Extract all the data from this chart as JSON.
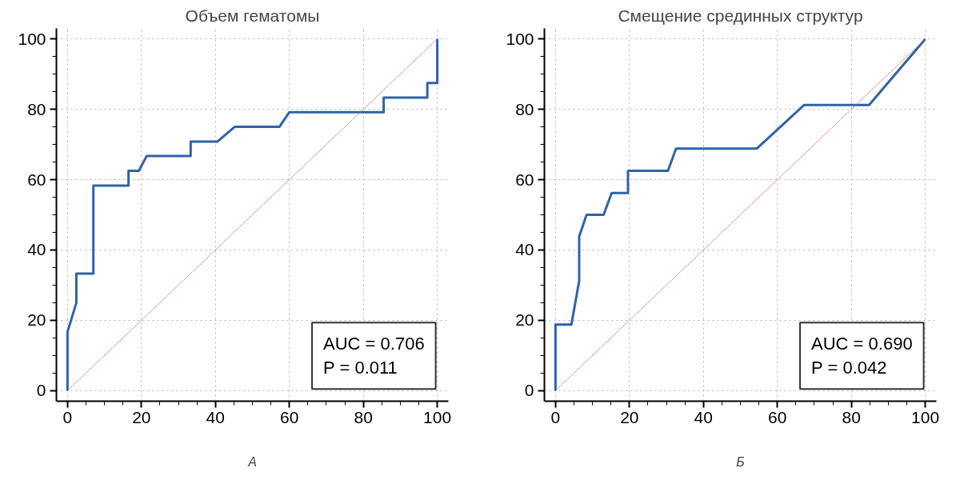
{
  "chart_data": [
    {
      "type": "line",
      "title": "Объем гематомы",
      "xlim": [
        -3,
        103
      ],
      "ylim": [
        -3,
        103
      ],
      "xticks": [
        0,
        20,
        40,
        60,
        80,
        100
      ],
      "yticks": [
        0,
        20,
        40,
        60,
        80,
        100
      ],
      "grid": true,
      "marker": "none",
      "series": [
        {
          "color": "#2f63a8",
          "line_style": "solid",
          "x": [
            0,
            0,
            2.4,
            2.4,
            7,
            7,
            16.5,
            16.5,
            19.3,
            21.4,
            33.3,
            33.3,
            40.5,
            45.2,
            57.3,
            60,
            85.5,
            85.5,
            97.3,
            97.3,
            100,
            100
          ],
          "values": [
            0,
            16.7,
            25,
            33.3,
            33.3,
            58.3,
            58.3,
            62.5,
            62.5,
            66.7,
            66.7,
            70.8,
            70.8,
            75,
            75,
            79.2,
            79.2,
            83.3,
            83.3,
            87.5,
            87.5,
            100
          ]
        },
        {
          "color": "#c06a6a",
          "line_style": "dotted",
          "x": [
            0,
            100
          ],
          "values": [
            0,
            100
          ]
        }
      ],
      "annotations": [
        "AUC = 0.706",
        "P = 0.011",
        "А"
      ]
    },
    {
      "type": "line",
      "title": "Смещение срединных структур",
      "xlim": [
        -3,
        103
      ],
      "ylim": [
        -3,
        103
      ],
      "xticks": [
        0,
        20,
        40,
        60,
        80,
        100
      ],
      "yticks": [
        0,
        20,
        40,
        60,
        80,
        100
      ],
      "grid": true,
      "marker": "none",
      "series": [
        {
          "color": "#2f63a8",
          "line_style": "solid",
          "x": [
            0,
            0,
            4.3,
            6.4,
            6.4,
            8.4,
            13,
            15.2,
            19.6,
            19.6,
            30.4,
            32.6,
            54.4,
            67.2,
            84.8,
            100
          ],
          "values": [
            0,
            18.8,
            18.8,
            31.2,
            43.8,
            50,
            50,
            56.2,
            56.2,
            62.5,
            62.5,
            68.8,
            68.8,
            81.2,
            81.2,
            100
          ]
        },
        {
          "color": "#c06a6a",
          "line_style": "dotted",
          "x": [
            0,
            100
          ],
          "values": [
            0,
            100
          ]
        }
      ],
      "annotations": [
        "AUC = 0.690",
        "P = 0.042",
        "Б"
      ]
    }
  ]
}
